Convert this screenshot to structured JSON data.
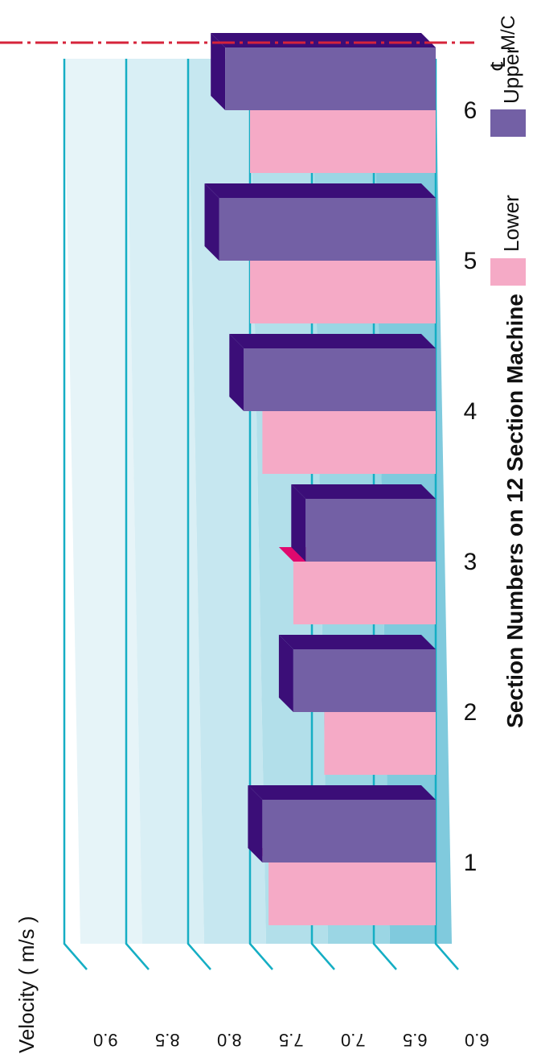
{
  "chart_data": {
    "type": "bar",
    "title": "",
    "ylabel": "Velocity ( m/s )",
    "xlabel": "Section Numbers on 12 Section Machine",
    "categories": [
      "1",
      "2",
      "3",
      "4",
      "5",
      "6"
    ],
    "series": [
      {
        "name": "Lower",
        "values": [
          7.35,
          6.9,
          7.15,
          7.4,
          7.5,
          7.5
        ]
      },
      {
        "name": "Upper",
        "values": [
          7.4,
          7.15,
          7.05,
          7.55,
          7.75,
          7.7
        ]
      }
    ],
    "ylim": [
      6.0,
      9.0
    ],
    "yticks": [
      "6.0",
      "6.5",
      "7.0",
      "7.5",
      "8.0",
      "8.5",
      "9.0"
    ],
    "grid": true,
    "legend": "top-right",
    "centerline_label": "M/C",
    "centerline_symbol": "℄",
    "colors": {
      "lower_front": "#f5aac6",
      "lower_side": "#e0096e",
      "upper_front": "#7360a5",
      "upper_top": "#3b0e78",
      "gridline": "#15aec4",
      "centerline": "#d6233a"
    }
  }
}
